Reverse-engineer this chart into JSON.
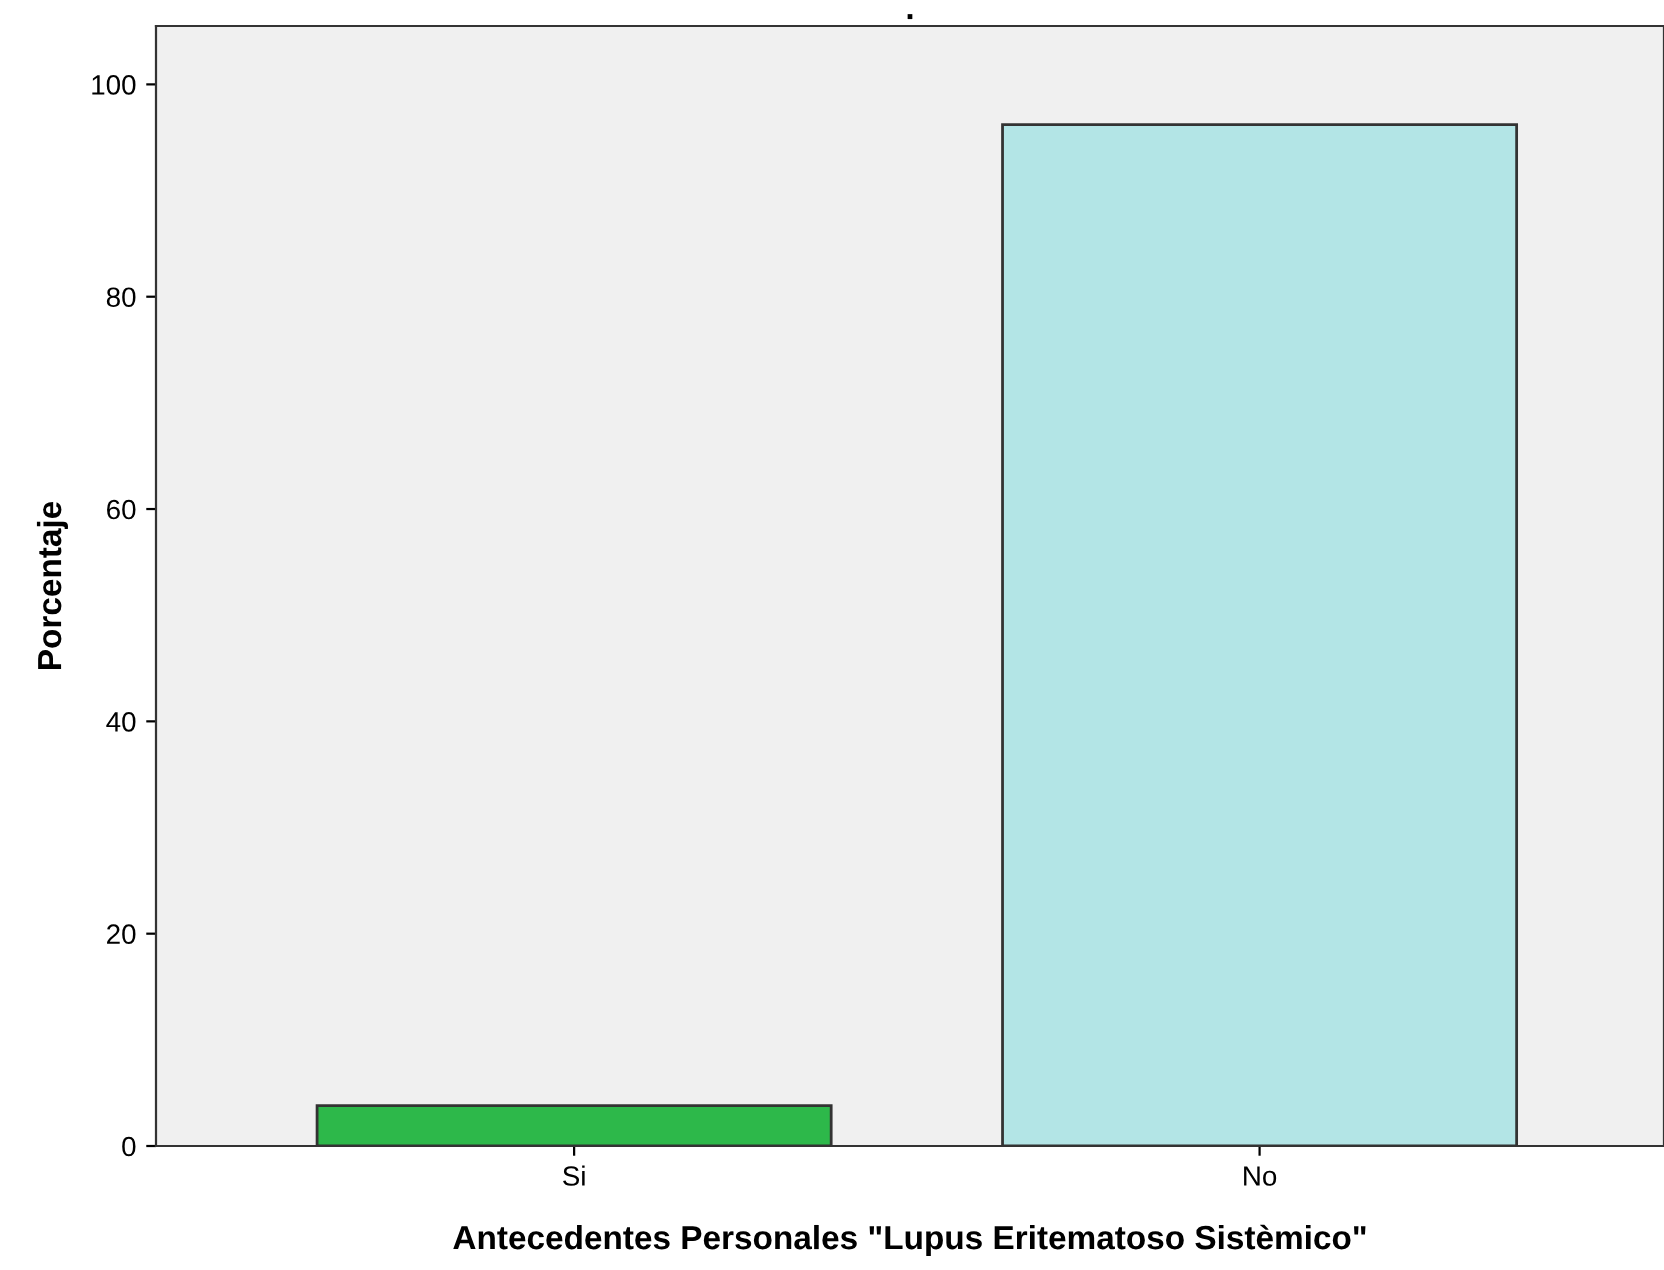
{
  "chart_data": {
    "type": "bar",
    "title": ".",
    "xlabel": "Antecedentes Personales \"Lupus Eritematoso Sistèmico\"",
    "ylabel": "Porcentaje",
    "categories": [
      "Si",
      "No"
    ],
    "values": [
      3.8,
      96.2
    ],
    "colors": [
      "#2db84a",
      "#b3e5e6"
    ],
    "ylim": [
      0,
      105.5
    ],
    "yticks": [
      0,
      20,
      40,
      60,
      80,
      100
    ],
    "grid": false,
    "legend": false
  }
}
